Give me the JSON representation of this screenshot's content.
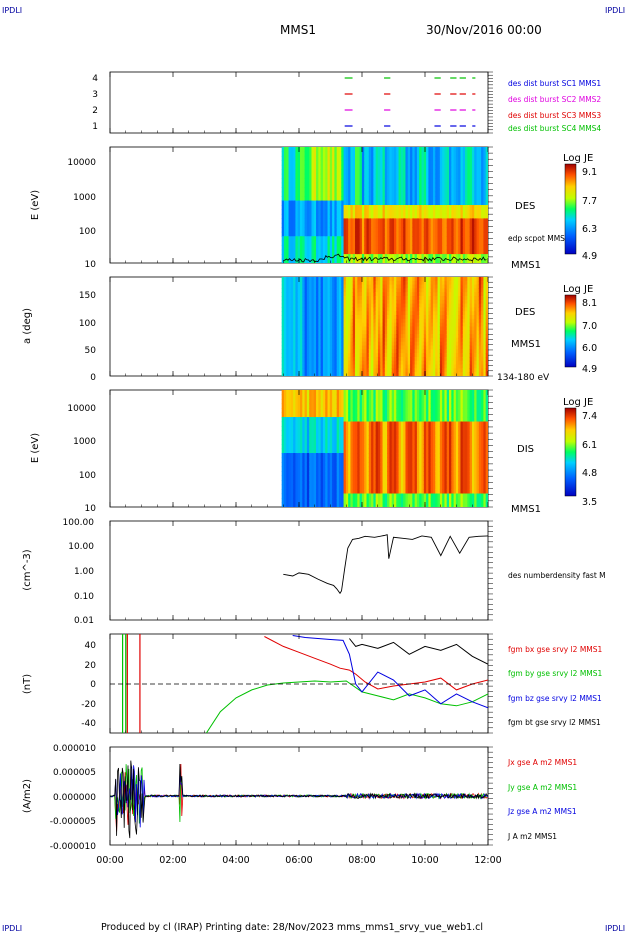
{
  "corner_tl": "IPDLI",
  "corner_tr": "IPDLI",
  "corner_bl": "IPDLI",
  "corner_br": "IPDLI",
  "header": {
    "spacecraft": "MMS1",
    "date": "30/Nov/2016 00:00"
  },
  "footer": "Produced by cl (IRAP)   Printing date: 28/Nov/2023   mms_mms1_srvy_vue_web1.cl",
  "colors": {
    "red": "#e00000",
    "green": "#00c000",
    "blue": "#0000e0",
    "magenta": "#e000e0",
    "black": "#000000"
  },
  "chart_data": [
    {
      "type": "line",
      "panel": "burst-availability",
      "x_unit": "hours",
      "xlim": [
        0,
        12
      ],
      "ylim": [
        0.5,
        4.5
      ],
      "yticks": [
        "1",
        "2",
        "3",
        "4"
      ],
      "series": [
        {
          "name": "des dist burst SC1 MMS1",
          "color": "#0000e0",
          "y": 1
        },
        {
          "name": "des dist burst SC2 MMS2",
          "color": "#e000e0",
          "y": 2
        },
        {
          "name": "des dist burst SC3 MMS3",
          "color": "#e00000",
          "y": 3
        },
        {
          "name": "des dist burst SC4 MMS4",
          "color": "#00c000",
          "y": 4
        }
      ],
      "segments": [
        [
          7.45,
          7.7
        ],
        [
          8.7,
          8.9
        ],
        [
          10.3,
          10.5
        ],
        [
          10.8,
          11.0
        ],
        [
          11.1,
          11.3
        ],
        [
          11.5,
          11.6
        ]
      ]
    },
    {
      "type": "heatmap",
      "panel": "des-energy",
      "ylabel": "E (eV)",
      "yscale": "log",
      "yticks": [
        "10",
        "100",
        "1000",
        "10000"
      ],
      "xlim": [
        0,
        12
      ],
      "data_start": 5.45,
      "label": "DES",
      "instrument": "MMS1",
      "overlay": "edp scpot MMS1",
      "colorbar": {
        "title": "Log JE",
        "ticks": [
          "9.1",
          "7.7",
          "6.3",
          "4.9"
        ]
      }
    },
    {
      "type": "heatmap",
      "panel": "des-pitch",
      "ylabel": "a (deg)",
      "yticks": [
        "0",
        "50",
        "100",
        "150"
      ],
      "ylim": [
        0,
        180
      ],
      "xlim": [
        0,
        12
      ],
      "data_start": 5.45,
      "label": "DES",
      "instrument": "MMS1",
      "energy_range": "134-180 eV",
      "colorbar": {
        "title": "Log JE",
        "ticks": [
          "8.1",
          "7.0",
          "6.0",
          "4.9"
        ]
      }
    },
    {
      "type": "heatmap",
      "panel": "dis-energy",
      "ylabel": "E (eV)",
      "yscale": "log",
      "yticks": [
        "10",
        "100",
        "1000",
        "10000"
      ],
      "xlim": [
        0,
        12
      ],
      "data_start": 5.45,
      "label": "DIS",
      "instrument": "MMS1",
      "colorbar": {
        "title": "Log JE",
        "ticks": [
          "7.4",
          "6.1",
          "4.8",
          "3.5"
        ]
      }
    },
    {
      "type": "line",
      "panel": "density",
      "ylabel": "(cm^-3)",
      "yscale": "log",
      "yticks": [
        "0.01",
        "0.10",
        "1.00",
        "10.00",
        "100.00"
      ],
      "xlim": [
        0,
        12
      ],
      "series": [
        {
          "name": "des numberdensity fast M",
          "color": "#000000",
          "x": [
            5.5,
            5.8,
            6.0,
            6.3,
            6.6,
            6.9,
            7.1,
            7.2,
            7.3,
            7.35,
            7.45,
            7.55,
            7.7,
            7.9,
            8.1,
            8.4,
            8.7,
            8.8,
            8.85,
            9.0,
            9.3,
            9.6,
            9.9,
            10.2,
            10.5,
            10.8,
            11.1,
            11.4,
            11.7,
            12.0
          ],
          "y": [
            0.7,
            0.6,
            0.8,
            0.7,
            0.45,
            0.3,
            0.25,
            0.18,
            0.12,
            0.15,
            1.2,
            8,
            18,
            20,
            24,
            22,
            26,
            28,
            3,
            22,
            20,
            18,
            25,
            22,
            4,
            24,
            5,
            22,
            24,
            25
          ]
        }
      ]
    },
    {
      "type": "line",
      "panel": "magnetic-field",
      "ylabel": "(nT)",
      "yticks": [
        "-40",
        "-20",
        "0",
        "20",
        "40"
      ],
      "ylim": [
        -50,
        50
      ],
      "xlim": [
        0,
        12
      ],
      "series": [
        {
          "name": "fgm bx gse srvy l2 MMS1",
          "color": "#e00000",
          "x": [
            4.9,
            5.5,
            6.0,
            6.5,
            7.0,
            7.3,
            7.6,
            7.8,
            8.1,
            8.5,
            9.0,
            9.5,
            10.0,
            10.5,
            11.0,
            11.5,
            12.0
          ],
          "y": [
            48,
            38,
            32,
            26,
            20,
            16,
            14,
            10,
            2,
            -5,
            -2,
            0,
            2,
            6,
            -6,
            0,
            4
          ]
        },
        {
          "name": "fgm by gse srvy l2 MMS1",
          "color": "#00c000",
          "x": [
            3.05,
            3.5,
            4.0,
            4.5,
            5.0,
            5.5,
            6.0,
            6.5,
            7.0,
            7.5,
            8.0,
            8.5,
            9.0,
            9.5,
            10.0,
            10.5,
            11.0,
            11.5,
            12.0
          ],
          "y": [
            -50,
            -28,
            -14,
            -6,
            -1,
            1,
            2,
            3,
            2,
            3,
            -8,
            -12,
            -16,
            -10,
            -14,
            -20,
            -22,
            -18,
            -10
          ]
        },
        {
          "name": "fgm bz gse srvy l2 MMS1",
          "color": "#0000e0",
          "x": [
            5.8,
            6.2,
            6.6,
            7.0,
            7.4,
            7.6,
            7.8,
            8.0,
            8.5,
            9.0,
            9.5,
            10.0,
            10.5,
            11.0,
            11.5,
            12.0
          ],
          "y": [
            49,
            47,
            46,
            45,
            44,
            30,
            0,
            -8,
            12,
            4,
            -12,
            -6,
            -20,
            -10,
            -18,
            -24
          ]
        },
        {
          "name": "fgm bt gse srvy l2 MMS1",
          "color": "#000000",
          "x": [
            7.6,
            7.8,
            8.0,
            8.5,
            9.0,
            9.5,
            10.0,
            10.5,
            11.0,
            11.5,
            12.0
          ],
          "y": [
            46,
            38,
            40,
            36,
            42,
            30,
            38,
            34,
            40,
            28,
            20
          ]
        }
      ]
    },
    {
      "type": "line",
      "panel": "current-density",
      "ylabel": "(A/m2)",
      "yticks": [
        "-0.000010",
        "-0.000005",
        "0.000000",
        "0.000005",
        "0.000010"
      ],
      "ylim": [
        -1e-05,
        1e-05
      ],
      "xlim": [
        0,
        12
      ],
      "xticks": [
        "00:00",
        "02:00",
        "04:00",
        "06:00",
        "08:00",
        "10:00",
        "12:00"
      ],
      "series": [
        {
          "name": "Jx gse A m2 MMS1",
          "color": "#e00000"
        },
        {
          "name": "Jy gse A m2 MMS1",
          "color": "#00c000"
        },
        {
          "name": "Jz gse A m2 MMS1",
          "color": "#0000e0"
        },
        {
          "name": "J A m2 MMS1",
          "color": "#000000"
        }
      ]
    }
  ]
}
